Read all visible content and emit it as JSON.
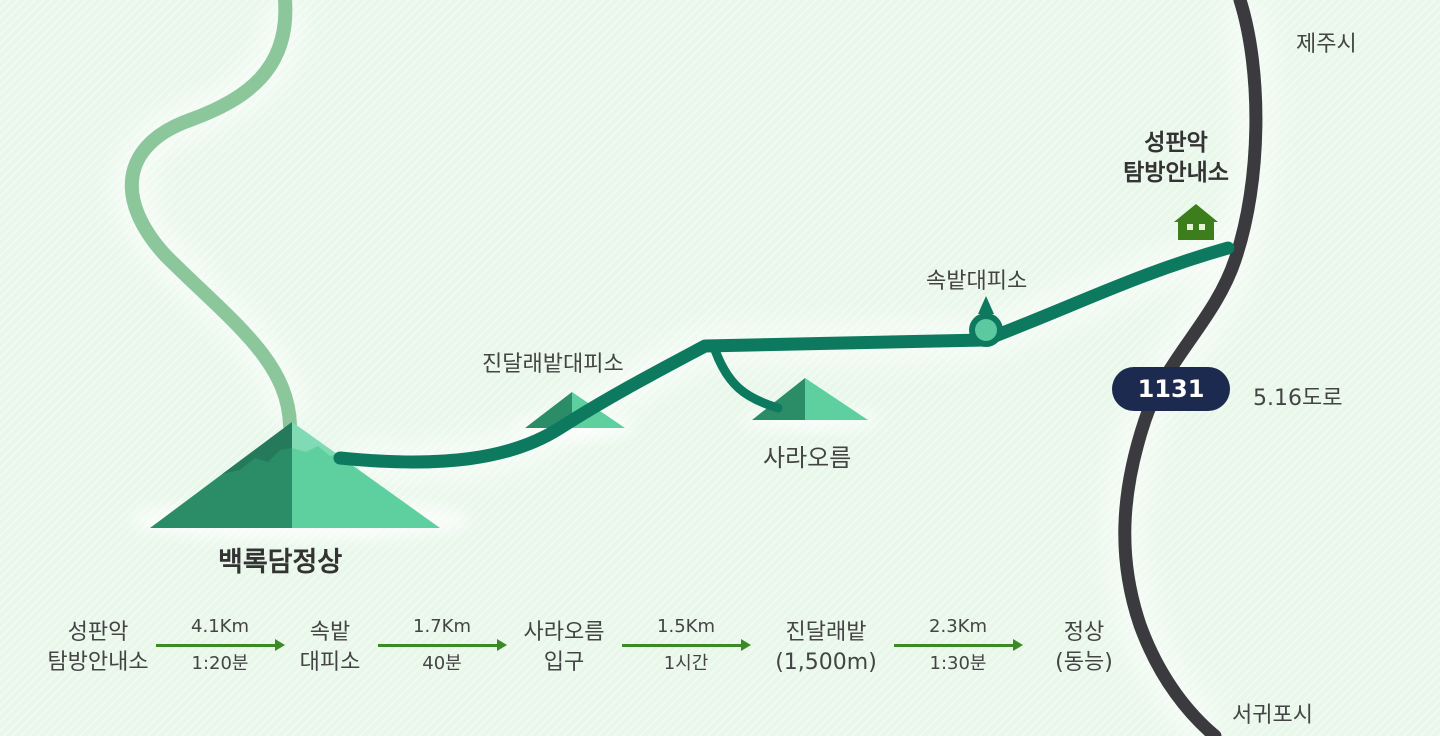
{
  "map": {
    "colors": {
      "background": "#e8f7ea",
      "trail": "#0d7a5f",
      "old_trail": "#8cc79b",
      "road": "#3b3b3f",
      "mountain_dark": "#2b8c68",
      "mountain_light": "#5ecf9f",
      "station": "#5cc9a0",
      "office_icon": "#3c7d1c",
      "arrow": "#3c8a26",
      "road_badge": "#1b2a4e"
    },
    "labels": {
      "peak": "백록담정상",
      "jindallaebat": "진달래밭대피소",
      "sara_oreum": "사라오름",
      "sokbat": "속밭대피소",
      "office_line1": "성판악",
      "office_line2": "탐방안내소",
      "jeju_city": "제주시",
      "seogwipo_city": "서귀포시",
      "road_number": "1131",
      "road_name": "5.16도로"
    },
    "icons": [
      "house-icon",
      "station-marker-icon",
      "mountain-icon"
    ]
  },
  "summary": {
    "nodes": [
      {
        "line1": "성판악",
        "line2": "탐방안내소"
      },
      {
        "line1": "속밭",
        "line2": "대피소"
      },
      {
        "line1": "사라오름",
        "line2": "입구"
      },
      {
        "line1": "진달래밭",
        "line2": "(1,500m)"
      },
      {
        "line1": "정상",
        "line2": "(동능)"
      }
    ],
    "segments": [
      {
        "distance": "4.1Km",
        "time": "1:20분"
      },
      {
        "distance": "1.7Km",
        "time": "40분"
      },
      {
        "distance": "1.5Km",
        "time": "1시간"
      },
      {
        "distance": "2.3Km",
        "time": "1:30분"
      }
    ]
  }
}
